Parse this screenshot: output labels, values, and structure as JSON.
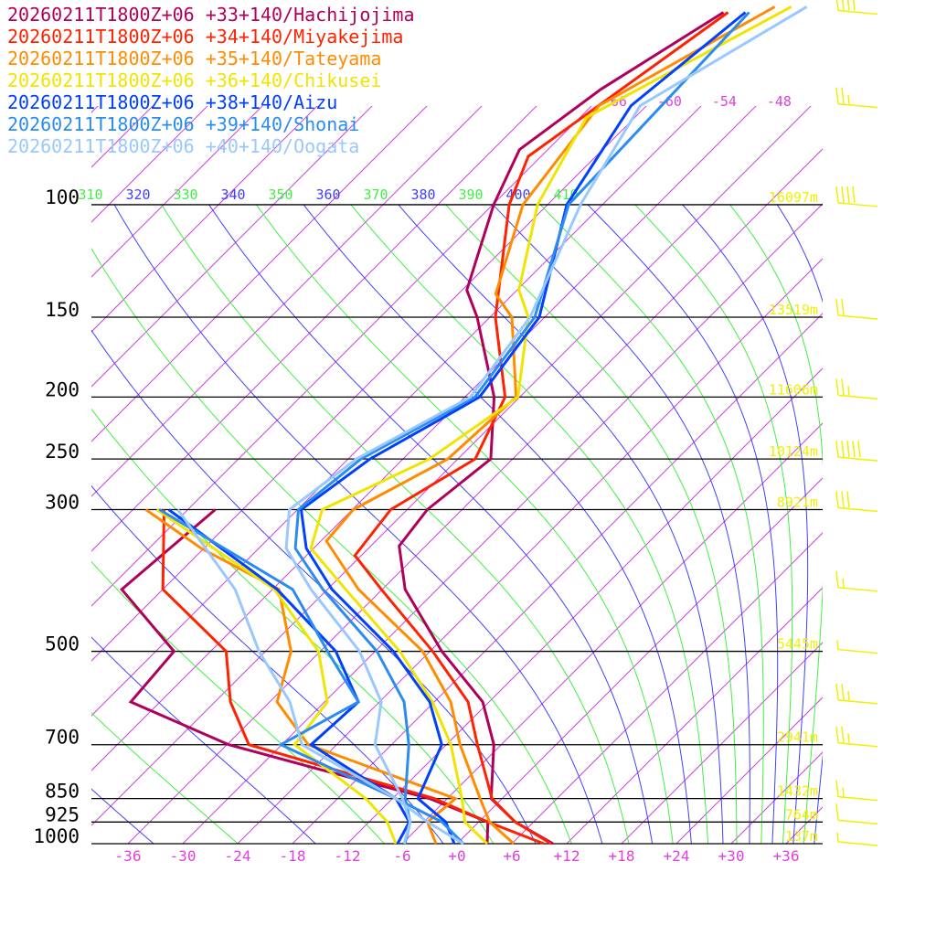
{
  "chart_data": {
    "type": "line",
    "subtype": "skew-T log-P sounding",
    "x_axis": {
      "label": "Temperature (°C)",
      "ticks": [
        "-36",
        "-30",
        "-24",
        "-18",
        "-12",
        "-6",
        "+0",
        "+6",
        "+12",
        "+18",
        "+24",
        "+30",
        "+36"
      ],
      "tick_values": [
        -36,
        -30,
        -24,
        -18,
        -12,
        -6,
        0,
        6,
        12,
        18,
        24,
        30,
        36
      ]
    },
    "y_axis": {
      "label": "Pressure (hPa)",
      "scale": "log",
      "range": [
        1000,
        50
      ],
      "ticks": [
        "100",
        "150",
        "200",
        "250",
        "300",
        "500",
        "700",
        "850",
        "925",
        "1000"
      ],
      "tick_values": [
        100,
        150,
        200,
        250,
        300,
        500,
        700,
        850,
        925,
        1000
      ]
    },
    "isotherm_top_labels": [
      {
        "text": "-66",
        "value": -66
      },
      {
        "text": "-60",
        "value": -60
      },
      {
        "text": "-54",
        "value": -54
      },
      {
        "text": "-48",
        "value": -48
      }
    ],
    "adiabat_labels": [
      "310",
      "320",
      "330",
      "340",
      "350",
      "360",
      "370",
      "380",
      "390",
      "400",
      "410"
    ],
    "adiabat_values": [
      240,
      250,
      260,
      270,
      280,
      290,
      300,
      310,
      320,
      330,
      340,
      350,
      360,
      370,
      380,
      390,
      400,
      410,
      420,
      430,
      440,
      450,
      460,
      470,
      480
    ],
    "isotherm_step_c": 6,
    "heights": [
      {
        "p": 100,
        "label": "16097m"
      },
      {
        "p": 150,
        "label": "13519m"
      },
      {
        "p": 200,
        "label": "11606m"
      },
      {
        "p": 250,
        "label": "10124m"
      },
      {
        "p": 300,
        "label": "8921m"
      },
      {
        "p": 500,
        "label": "5445m"
      },
      {
        "p": 700,
        "label": "2941m"
      },
      {
        "p": 850,
        "label": "1432m"
      },
      {
        "p": 925,
        "label": "764m"
      },
      {
        "p": 1000,
        "label": "137m"
      }
    ],
    "wind_barbs": [
      {
        "p": 50,
        "speed_kt": 40
      },
      {
        "p": 70,
        "speed_kt": 25
      },
      {
        "p": 100,
        "speed_kt": 40
      },
      {
        "p": 150,
        "speed_kt": 20
      },
      {
        "p": 200,
        "speed_kt": 25
      },
      {
        "p": 250,
        "speed_kt": 50
      },
      {
        "p": 300,
        "speed_kt": 30
      },
      {
        "p": 400,
        "speed_kt": 15
      },
      {
        "p": 500,
        "speed_kt": 5
      },
      {
        "p": 600,
        "speed_kt": 25
      },
      {
        "p": 700,
        "speed_kt": 25
      },
      {
        "p": 850,
        "speed_kt": 15
      },
      {
        "p": 925,
        "speed_kt": 10
      },
      {
        "p": 1000,
        "speed_kt": 5
      }
    ],
    "series": [
      {
        "name": "20260211T1800Z+06 +33+140/Hachijojima",
        "color": "#b0005a",
        "temperature": [
          [
            1000,
            10.5
          ],
          [
            925,
            4.0
          ],
          [
            850,
            -1.2
          ],
          [
            700,
            -6.8
          ],
          [
            600,
            -12.7
          ],
          [
            500,
            -22.7
          ],
          [
            400,
            -33.5
          ],
          [
            342,
            -38.9
          ],
          [
            300,
            -39.8
          ],
          [
            250,
            -38.4
          ],
          [
            200,
            -44.8
          ],
          [
            150,
            -55.4
          ],
          [
            136,
            -59.5
          ],
          [
            100,
            -65.9
          ],
          [
            82,
            -69.1
          ],
          [
            66,
            -66.8
          ],
          [
            50,
            -61.8
          ]
        ],
        "dewpoint": [
          [
            1000,
            3.3
          ],
          [
            925,
            1.0
          ],
          [
            850,
            -7.9
          ],
          [
            766,
            -23.0
          ],
          [
            700,
            -35.8
          ],
          [
            600,
            -51.2
          ],
          [
            500,
            -52.0
          ],
          [
            400,
            -64.5
          ],
          [
            300,
            -63.0
          ]
        ]
      },
      {
        "name": "20260211T1800Z+06 +34+140/Miyakejima",
        "color": "#ff2200",
        "temperature": [
          [
            1000,
            10.3
          ],
          [
            925,
            4.0
          ],
          [
            850,
            -1.1
          ],
          [
            700,
            -8.6
          ],
          [
            600,
            -14.3
          ],
          [
            500,
            -23.7
          ],
          [
            400,
            -36.1
          ],
          [
            354,
            -42.7
          ],
          [
            300,
            -43.8
          ],
          [
            250,
            -40.1
          ],
          [
            200,
            -43.6
          ],
          [
            150,
            -53.4
          ],
          [
            100,
            -64.2
          ],
          [
            84,
            -67.4
          ],
          [
            50,
            -61.3
          ]
        ],
        "dewpoint": [
          [
            1000,
            9.5
          ],
          [
            925,
            1.0
          ],
          [
            850,
            -7.4
          ],
          [
            700,
            -33.6
          ],
          [
            600,
            -40.3
          ],
          [
            500,
            -46.3
          ],
          [
            400,
            -60.0
          ],
          [
            300,
            -68.6
          ]
        ]
      },
      {
        "name": "20260211T1800Z+06 +35+140/Tateyama",
        "color": "#ff8c00",
        "temperature": [
          [
            1000,
            6.2
          ],
          [
            925,
            1.2
          ],
          [
            850,
            -2.4
          ],
          [
            700,
            -10.5
          ],
          [
            600,
            -16.2
          ],
          [
            500,
            -24.8
          ],
          [
            400,
            -38.6
          ],
          [
            336,
            -47.4
          ],
          [
            300,
            -47.9
          ],
          [
            250,
            -43.1
          ],
          [
            200,
            -42.4
          ],
          [
            150,
            -51.6
          ],
          [
            138,
            -55.9
          ],
          [
            100,
            -62.7
          ],
          [
            70,
            -65.2
          ],
          [
            49,
            -56.8
          ]
        ],
        "dewpoint": [
          [
            1000,
            -2.3
          ],
          [
            925,
            -5.6
          ],
          [
            850,
            -5.1
          ],
          [
            700,
            -27.1
          ],
          [
            600,
            -35.2
          ],
          [
            500,
            -39.2
          ],
          [
            400,
            -47.3
          ],
          [
            345,
            -60.3
          ],
          [
            300,
            -70.6
          ]
        ]
      },
      {
        "name": "20260211T1800Z+06 +36+140/Chikusei",
        "color": "#f0e400",
        "temperature": [
          [
            1000,
            3.3
          ],
          [
            925,
            -1.5
          ],
          [
            850,
            -4.4
          ],
          [
            700,
            -11.5
          ],
          [
            600,
            -18.2
          ],
          [
            500,
            -27.3
          ],
          [
            400,
            -40.0
          ],
          [
            345,
            -48.3
          ],
          [
            300,
            -51.3
          ],
          [
            250,
            -45.1
          ],
          [
            200,
            -42.2
          ],
          [
            150,
            -49.8
          ],
          [
            136,
            -53.8
          ],
          [
            100,
            -61.1
          ],
          [
            73,
            -65.3
          ],
          [
            49,
            -55.0
          ]
        ],
        "dewpoint": [
          [
            1000,
            -6.7
          ],
          [
            925,
            -10.0
          ],
          [
            850,
            -14.9
          ],
          [
            700,
            -28.6
          ],
          [
            600,
            -29.7
          ],
          [
            500,
            -36.2
          ],
          [
            400,
            -47.8
          ],
          [
            300,
            -69.4
          ]
        ]
      },
      {
        "name": "20260211T1800Z+06 +38+140/Aizu",
        "color": "#0040ff",
        "temperature": [
          [
            1000,
            -0.3
          ],
          [
            925,
            -3.6
          ],
          [
            850,
            -9.2
          ],
          [
            700,
            -12.5
          ],
          [
            600,
            -18.5
          ],
          [
            500,
            -28.0
          ],
          [
            400,
            -41.5
          ],
          [
            345,
            -48.8
          ],
          [
            300,
            -53.6
          ],
          [
            250,
            -51.6
          ],
          [
            200,
            -46.4
          ],
          [
            150,
            -48.6
          ],
          [
            100,
            -57.9
          ],
          [
            70,
            -61.7
          ],
          [
            50,
            -59.4
          ]
        ],
        "dewpoint": [
          [
            1000,
            -6.5
          ],
          [
            925,
            -7.6
          ],
          [
            850,
            -11.6
          ],
          [
            700,
            -26.8
          ],
          [
            600,
            -26.3
          ],
          [
            500,
            -34.3
          ],
          [
            400,
            -47.5
          ],
          [
            300,
            -68.1
          ]
        ]
      },
      {
        "name": "20260211T1800Z+06 +39+140/Shonai",
        "color": "#2a8cf0",
        "temperature": [
          [
            1000,
            -5.7
          ],
          [
            925,
            -7.5
          ],
          [
            850,
            -10.6
          ],
          [
            700,
            -16.1
          ],
          [
            600,
            -21.3
          ],
          [
            500,
            -29.8
          ],
          [
            400,
            -42.5
          ],
          [
            345,
            -50.0
          ],
          [
            300,
            -53.9
          ],
          [
            250,
            -52.6
          ],
          [
            200,
            -46.9
          ],
          [
            150,
            -49.1
          ],
          [
            100,
            -57.7
          ],
          [
            50,
            -59.0
          ]
        ],
        "dewpoint": [
          [
            1000,
            0.7
          ],
          [
            925,
            -4.0
          ],
          [
            850,
            -11.6
          ],
          [
            700,
            -30.1
          ],
          [
            600,
            -26.3
          ],
          [
            500,
            -35.2
          ],
          [
            400,
            -45.8
          ],
          [
            300,
            -69.1
          ]
        ]
      },
      {
        "name": "20260211T1800Z+06 +40+140/Oogata",
        "color": "#99c8ff",
        "temperature": [
          [
            1000,
            -5.8
          ],
          [
            925,
            -7.5
          ],
          [
            850,
            -10.9
          ],
          [
            700,
            -19.8
          ],
          [
            600,
            -23.8
          ],
          [
            500,
            -31.7
          ],
          [
            400,
            -43.8
          ],
          [
            345,
            -51.0
          ],
          [
            300,
            -54.9
          ],
          [
            250,
            -53.1
          ],
          [
            200,
            -47.4
          ],
          [
            150,
            -49.6
          ],
          [
            100,
            -56.4
          ],
          [
            70,
            -60.7
          ],
          [
            49,
            -53.3
          ]
        ],
        "dewpoint": [
          [
            1000,
            0.7
          ],
          [
            925,
            -5.6
          ],
          [
            850,
            -11.6
          ],
          [
            700,
            -27.8
          ],
          [
            600,
            -33.8
          ],
          [
            500,
            -42.7
          ],
          [
            400,
            -52.1
          ],
          [
            300,
            -67.1
          ]
        ]
      }
    ]
  },
  "colors": {
    "isotherm": "#d040e0",
    "adiabat_a": "#4040ff",
    "adiabat_b": "#40f040",
    "height_label": "#f0f000",
    "barb": "#f0f000",
    "axis_text": "#e040e0",
    "pressure_text": "#000000"
  }
}
